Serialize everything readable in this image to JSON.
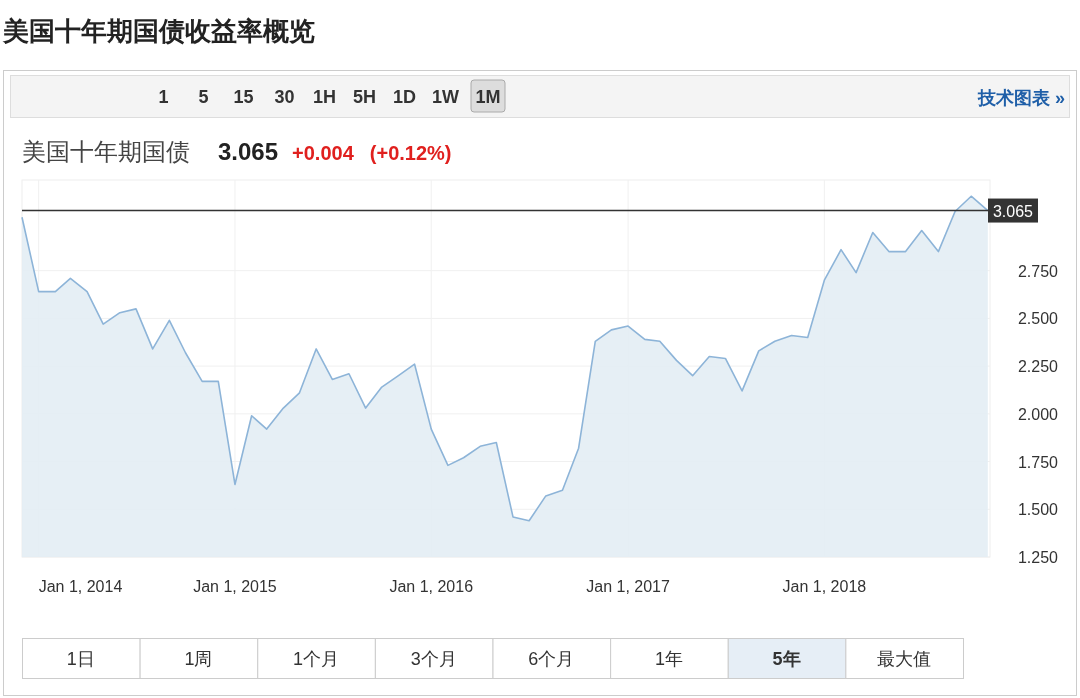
{
  "chart_data": {
    "type": "area",
    "title": "美国十年期国债收益率概览",
    "subtitle": "美国十年期国债",
    "annotations": [
      "1 5 15 30 1H 5H 1D 1W 1M",
      "技术图表 »",
      "1日",
      "1周",
      "1个月",
      "3个月",
      "6个月",
      "1年",
      "5年",
      "最大值",
      "3.065",
      "+0.004",
      "(+0.12%)"
    ],
    "x": [
      "2013-12-01",
      "2014-01-01",
      "2014-02-01",
      "2014-03-01",
      "2014-04-01",
      "2014-05-01",
      "2014-06-01",
      "2014-07-01",
      "2014-08-01",
      "2014-09-01",
      "2014-10-01",
      "2014-11-01",
      "2014-12-01",
      "2015-01-01",
      "2015-02-01",
      "2015-03-01",
      "2015-04-01",
      "2015-05-01",
      "2015-06-01",
      "2015-07-01",
      "2015-08-01",
      "2015-09-01",
      "2015-10-01",
      "2015-11-01",
      "2015-12-01",
      "2016-01-01",
      "2016-02-01",
      "2016-03-01",
      "2016-04-01",
      "2016-05-01",
      "2016-06-01",
      "2016-07-01",
      "2016-08-01",
      "2016-09-01",
      "2016-10-01",
      "2016-11-01",
      "2016-12-01",
      "2017-01-01",
      "2017-02-01",
      "2017-03-01",
      "2017-04-01",
      "2017-05-01",
      "2017-06-01",
      "2017-07-01",
      "2017-08-01",
      "2017-09-01",
      "2017-10-01",
      "2017-11-01",
      "2017-12-01",
      "2018-01-01",
      "2018-02-01",
      "2018-03-01",
      "2018-04-01",
      "2018-05-01",
      "2018-06-01",
      "2018-07-01",
      "2018-08-01",
      "2018-09-01",
      "2018-10-01",
      "2018-11-01"
    ],
    "series": [
      {
        "color": "#8db4d8",
        "values": [
          3.03,
          2.64,
          2.64,
          2.71,
          2.64,
          2.47,
          2.53,
          2.55,
          2.34,
          2.49,
          2.32,
          2.17,
          2.17,
          1.63,
          1.99,
          1.92,
          2.03,
          2.11,
          2.34,
          2.18,
          2.21,
          2.03,
          2.14,
          2.2,
          2.26,
          1.92,
          1.73,
          1.77,
          1.83,
          1.85,
          1.46,
          1.44,
          1.57,
          1.6,
          1.82,
          2.38,
          2.44,
          2.46,
          2.39,
          2.38,
          2.28,
          2.2,
          2.3,
          2.29,
          2.12,
          2.33,
          2.38,
          2.41,
          2.4,
          2.7,
          2.86,
          2.74,
          2.95,
          2.85,
          2.85,
          2.96,
          2.85,
          3.06,
          3.14,
          3.065
        ]
      }
    ],
    "xlim": [
      "2013-12-01",
      "2018-11-05"
    ],
    "xticks": [
      {
        "value": "2014-01-01",
        "label": "Jan 1, 2014"
      },
      {
        "value": "2015-01-01",
        "label": "Jan 1, 2015"
      },
      {
        "value": "2016-01-01",
        "label": "Jan 1, 2016"
      },
      {
        "value": "2017-01-01",
        "label": "Jan 1, 2017"
      },
      {
        "value": "2018-01-01",
        "label": "Jan 1, 2018"
      }
    ],
    "ylim": [
      1.25,
      3.225
    ],
    "yticks": [
      {
        "value": 1.25,
        "label": "1.250"
      },
      {
        "value": 1.5,
        "label": "1.500"
      },
      {
        "value": 1.75,
        "label": "1.750"
      },
      {
        "value": 2,
        "label": "2.000"
      },
      {
        "value": 2.25,
        "label": "2.250"
      },
      {
        "value": 2.5,
        "label": "2.500"
      },
      {
        "value": 2.75,
        "label": "2.750"
      }
    ],
    "ref_lines": [
      {
        "axis": "y",
        "value": 3.065,
        "label": "3.065",
        "color": "#333333"
      }
    ],
    "grid": true
  }
}
